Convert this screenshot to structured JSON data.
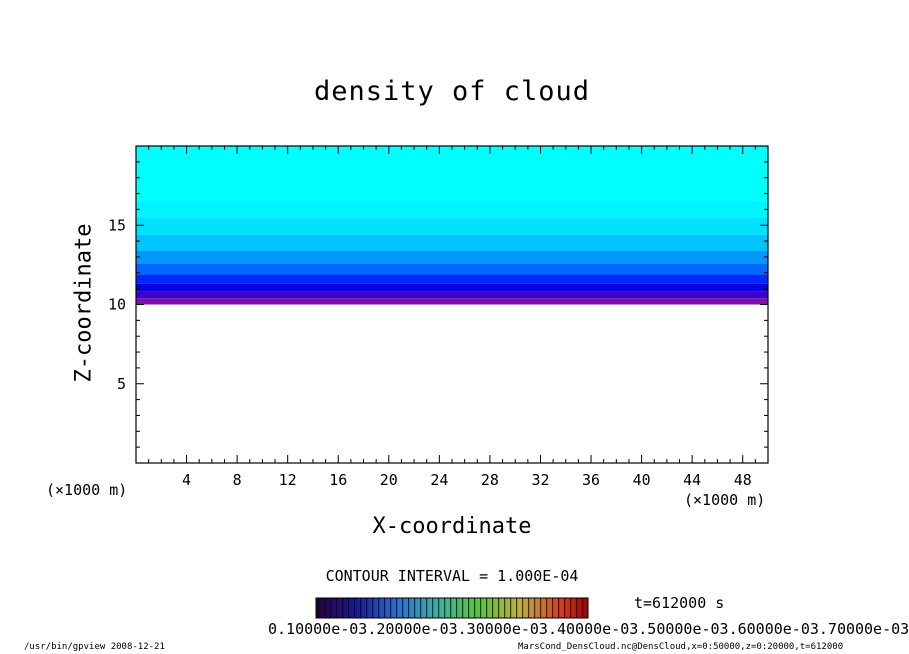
{
  "chart_data": {
    "type": "heatmap",
    "title": "density of cloud",
    "xlabel": "X-coordinate",
    "ylabel": "Z-coordinate",
    "x_unit_left": "(×1000 m)",
    "x_unit_right": "(×1000 m)",
    "xlim": [
      0,
      50
    ],
    "ylim": [
      0,
      20
    ],
    "xticks": [
      4,
      8,
      12,
      16,
      20,
      24,
      28,
      32,
      36,
      40,
      44,
      48
    ],
    "yticks": [
      5,
      10,
      15
    ],
    "z_layers": [
      {
        "z": 10.0,
        "color": "#7a10b4"
      },
      {
        "z": 10.4,
        "color": "#3b00ce"
      },
      {
        "z": 10.8,
        "color": "#0a00e8"
      },
      {
        "z": 11.3,
        "color": "#0028ff"
      },
      {
        "z": 11.9,
        "color": "#0068ff"
      },
      {
        "z": 12.6,
        "color": "#0098ff"
      },
      {
        "z": 13.4,
        "color": "#00c4ff"
      },
      {
        "z": 14.4,
        "color": "#00e0ff"
      },
      {
        "z": 15.5,
        "color": "#00f4ff"
      },
      {
        "z": 16.5,
        "color": "#00ffff"
      }
    ],
    "cloud_base_z": 10.0,
    "cloud_top_z": 20.0,
    "colorbar": {
      "min": 0.0001,
      "max": 0.0007,
      "interval": 0.0001
    }
  },
  "contour_interval_text": "CONTOUR INTERVAL = 1.000E-04",
  "time_text": "t=612000 s",
  "colorbar_labels_text": "0.10000e-03.20000e-03.30000e-03.40000e-03.50000e-03.60000e-03.70000e-03",
  "footer_left": "/usr/bin/gpview   2008-12-21",
  "footer_right": "MarsCond_DensCloud.nc@DensCloud,x=0:50000,z=0:20000,t=612000"
}
